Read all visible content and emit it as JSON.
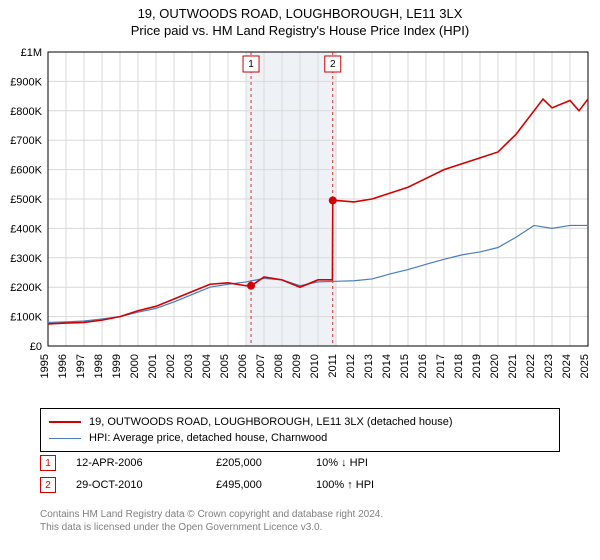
{
  "title_line1": "19, OUTWOODS ROAD, LOUGHBOROUGH, LE11 3LX",
  "title_line2": "Price paid vs. HM Land Registry's House Price Index (HPI)",
  "chart": {
    "type": "line",
    "background_color": "#ffffff",
    "plot_border_color": "#000000",
    "grid_color": "#d9d9d9",
    "highlight_band_color": "#eef2f7",
    "axes": {
      "x": {
        "min": 1995,
        "max": 2025,
        "tick_step": 1,
        "tick_fontsize": 11,
        "rotation": -90
      },
      "y": {
        "min": 0,
        "max": 1000000,
        "tick_step": 100000,
        "tick_fontsize": 11,
        "tick_labels": [
          "£0",
          "£100K",
          "£200K",
          "£300K",
          "£400K",
          "£500K",
          "£600K",
          "£700K",
          "£800K",
          "£900K",
          "£1M"
        ]
      }
    },
    "highlight_band_x": [
      2006,
      2011
    ],
    "series": [
      {
        "name": "property",
        "label": "19, OUTWOODS ROAD, LOUGHBOROUGH, LE11 3LX (detached house)",
        "color": "#d40000",
        "line_width": 1.6,
        "points": [
          [
            1995,
            75000
          ],
          [
            1996,
            78000
          ],
          [
            1997,
            80000
          ],
          [
            1998,
            88000
          ],
          [
            1999,
            100000
          ],
          [
            2000,
            120000
          ],
          [
            2001,
            135000
          ],
          [
            2002,
            160000
          ],
          [
            2003,
            185000
          ],
          [
            2004,
            210000
          ],
          [
            2005,
            215000
          ],
          [
            2006,
            205000
          ],
          [
            2006.3,
            205000
          ],
          [
            2007,
            235000
          ],
          [
            2008,
            225000
          ],
          [
            2009,
            200000
          ],
          [
            2010,
            225000
          ],
          [
            2010.8,
            225000
          ],
          [
            2010.82,
            495000
          ],
          [
            2011,
            495000
          ],
          [
            2012,
            490000
          ],
          [
            2013,
            500000
          ],
          [
            2014,
            520000
          ],
          [
            2015,
            540000
          ],
          [
            2016,
            570000
          ],
          [
            2017,
            600000
          ],
          [
            2018,
            620000
          ],
          [
            2019,
            640000
          ],
          [
            2020,
            660000
          ],
          [
            2021,
            720000
          ],
          [
            2022,
            800000
          ],
          [
            2022.5,
            840000
          ],
          [
            2023,
            810000
          ],
          [
            2024,
            835000
          ],
          [
            2024.5,
            800000
          ],
          [
            2025,
            840000
          ]
        ]
      },
      {
        "name": "hpi",
        "label": "HPI: Average price, detached house, Charnwood",
        "color": "#4a7ebb",
        "line_width": 1.2,
        "points": [
          [
            1995,
            80000
          ],
          [
            1996,
            82000
          ],
          [
            1997,
            85000
          ],
          [
            1998,
            92000
          ],
          [
            1999,
            100000
          ],
          [
            2000,
            115000
          ],
          [
            2001,
            128000
          ],
          [
            2002,
            150000
          ],
          [
            2003,
            175000
          ],
          [
            2004,
            200000
          ],
          [
            2005,
            210000
          ],
          [
            2006,
            218000
          ],
          [
            2007,
            230000
          ],
          [
            2008,
            225000
          ],
          [
            2009,
            205000
          ],
          [
            2010,
            218000
          ],
          [
            2011,
            220000
          ],
          [
            2012,
            222000
          ],
          [
            2013,
            228000
          ],
          [
            2014,
            245000
          ],
          [
            2015,
            260000
          ],
          [
            2016,
            278000
          ],
          [
            2017,
            295000
          ],
          [
            2018,
            310000
          ],
          [
            2019,
            320000
          ],
          [
            2020,
            335000
          ],
          [
            2021,
            370000
          ],
          [
            2022,
            410000
          ],
          [
            2023,
            400000
          ],
          [
            2024,
            410000
          ],
          [
            2025,
            410000
          ]
        ]
      }
    ],
    "transaction_markers": [
      {
        "n": "1",
        "x": 2006.28,
        "y": 205000,
        "color": "#d40000"
      },
      {
        "n": "2",
        "x": 2010.82,
        "y": 495000,
        "color": "#d40000"
      }
    ],
    "transaction_dot_color": "#d40000"
  },
  "legend": {
    "items": [
      {
        "key": "property",
        "color": "#d40000",
        "width": 2
      },
      {
        "key": "hpi",
        "color": "#4a7ebb",
        "width": 1.5
      }
    ]
  },
  "transactions": [
    {
      "n": "1",
      "date": "12-APR-2006",
      "price": "£205,000",
      "delta": "10% ↓ HPI",
      "marker_color": "#d40000"
    },
    {
      "n": "2",
      "date": "29-OCT-2010",
      "price": "£495,000",
      "delta": "100% ↑ HPI",
      "marker_color": "#d40000"
    }
  ],
  "credit_line1": "Contains HM Land Registry data © Crown copyright and database right 2024.",
  "credit_line2": "This data is licensed under the Open Government Licence v3.0."
}
